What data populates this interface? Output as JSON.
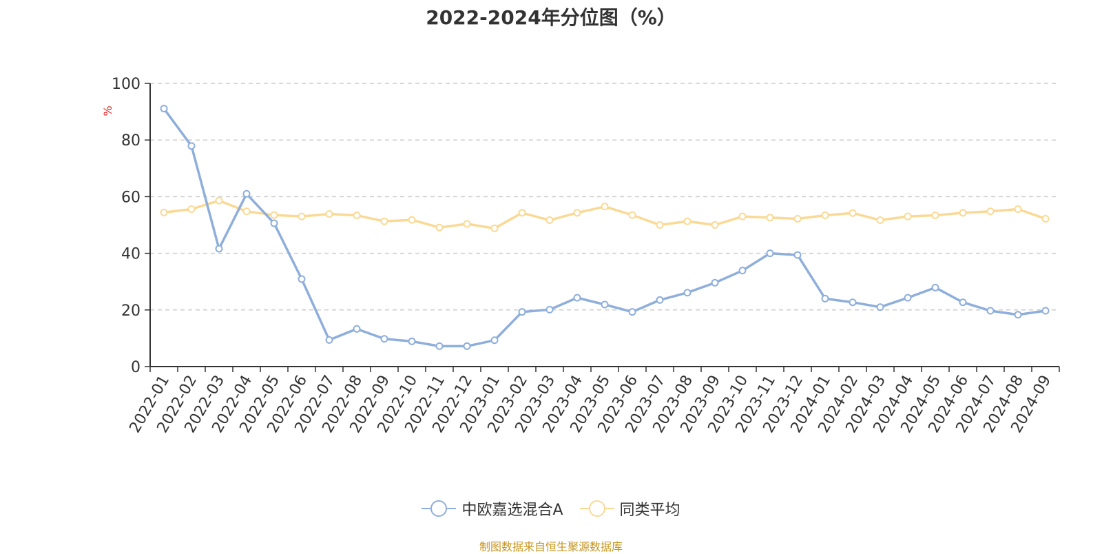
{
  "chart_data": {
    "type": "line",
    "title": "2022-2024年分位图（%）",
    "ylabel": "%",
    "xlabel": "",
    "ylim": [
      0,
      100
    ],
    "yticks": [
      0,
      20,
      40,
      60,
      80,
      100
    ],
    "grid": "horizontal-dashed",
    "legend_position": "bottom-center",
    "categories": [
      "2022-01",
      "2022-02",
      "2022-03",
      "2022-04",
      "2022-05",
      "2022-06",
      "2022-07",
      "2022-08",
      "2022-09",
      "2022-10",
      "2022-11",
      "2022-12",
      "2023-01",
      "2023-02",
      "2023-03",
      "2023-04",
      "2023-05",
      "2023-06",
      "2023-07",
      "2023-08",
      "2023-09",
      "2023-10",
      "2023-11",
      "2023-12",
      "2024-01",
      "2024-02",
      "2024-03",
      "2024-04",
      "2024-05",
      "2024-06",
      "2024-07",
      "2024-08",
      "2024-09"
    ],
    "series": [
      {
        "name": "中欧嘉选混合A",
        "color": "#8eaedb",
        "values": [
          91.1,
          77.9,
          41.6,
          61.0,
          50.6,
          30.9,
          9.4,
          13.3,
          9.8,
          8.9,
          7.2,
          7.2,
          9.3,
          19.3,
          20.1,
          24.3,
          21.9,
          19.3,
          23.5,
          26.1,
          29.6,
          33.9,
          40.0,
          39.4,
          24.0,
          22.7,
          21.0,
          24.3,
          27.9,
          22.7,
          19.7,
          18.3,
          19.7
        ]
      },
      {
        "name": "同类平均",
        "color": "#fad994",
        "values": [
          54.4,
          55.6,
          58.6,
          54.8,
          53.5,
          53.0,
          53.9,
          53.4,
          51.3,
          51.8,
          49.1,
          50.4,
          48.8,
          54.3,
          51.7,
          54.3,
          56.5,
          53.5,
          50.0,
          51.3,
          50.0,
          53.0,
          52.6,
          52.2,
          53.4,
          54.2,
          51.7,
          53.0,
          53.4,
          54.3,
          54.8,
          55.6,
          52.2
        ]
      }
    ]
  },
  "source_note": "制图数据来自恒生聚源数据库"
}
